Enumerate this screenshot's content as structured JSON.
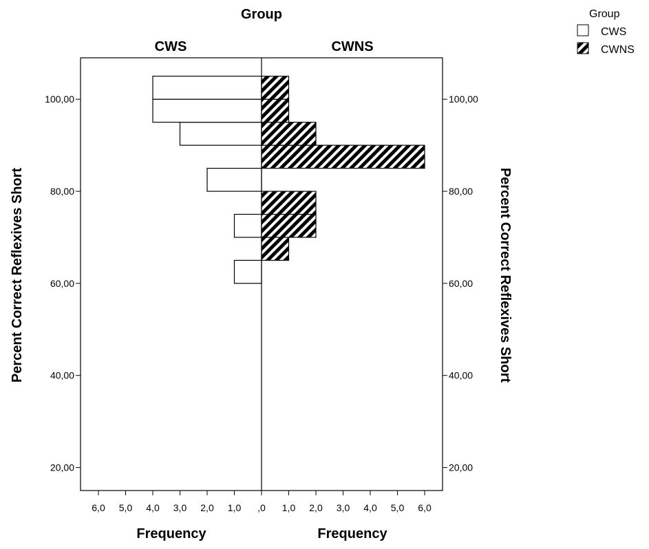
{
  "chart_data": {
    "type": "bar",
    "orientation": "population-pyramid",
    "title": "Group",
    "panels": [
      {
        "name": "CWS",
        "xlabel": "Frequency",
        "side": "left",
        "x_ticks": [
          "6,0",
          "5,0",
          "4,0",
          "3,0",
          "2,0",
          "1,0",
          ",0"
        ]
      },
      {
        "name": "CWNS",
        "xlabel": "Frequency",
        "side": "right",
        "x_ticks": [
          ",0",
          "1,0",
          "2,0",
          "3,0",
          "4,0",
          "5,0",
          "6,0"
        ]
      }
    ],
    "ylabel": "Percent Correct Reflexives Short",
    "y_ticks": [
      {
        "value": 20,
        "label": "20,00"
      },
      {
        "value": 40,
        "label": "40,00"
      },
      {
        "value": 60,
        "label": "60,00"
      },
      {
        "value": 80,
        "label": "80,00"
      },
      {
        "value": 100,
        "label": "100,00"
      }
    ],
    "ylim": [
      15,
      109
    ],
    "xlim": [
      0,
      6.5
    ],
    "bins": [
      {
        "low": 60,
        "high": 65,
        "CWS": 1,
        "CWNS": 0
      },
      {
        "low": 65,
        "high": 70,
        "CWS": 0,
        "CWNS": 1
      },
      {
        "low": 70,
        "high": 75,
        "CWS": 1,
        "CWNS": 2
      },
      {
        "low": 75,
        "high": 80,
        "CWS": 0,
        "CWNS": 2
      },
      {
        "low": 80,
        "high": 85,
        "CWS": 2,
        "CWNS": 0
      },
      {
        "low": 85,
        "high": 90,
        "CWS": 0,
        "CWNS": 6
      },
      {
        "low": 90,
        "high": 95,
        "CWS": 3,
        "CWNS": 2
      },
      {
        "low": 95,
        "high": 100,
        "CWS": 4,
        "CWNS": 1
      },
      {
        "low": 100,
        "high": 105,
        "CWS": 4,
        "CWNS": 1
      }
    ],
    "legend": {
      "title": "Group",
      "position": "top-right",
      "entries": [
        {
          "label": "CWS",
          "pattern": "empty",
          "color": "#ffffff"
        },
        {
          "label": "CWNS",
          "pattern": "hatched",
          "color": "#000000"
        }
      ]
    },
    "grid": false
  }
}
